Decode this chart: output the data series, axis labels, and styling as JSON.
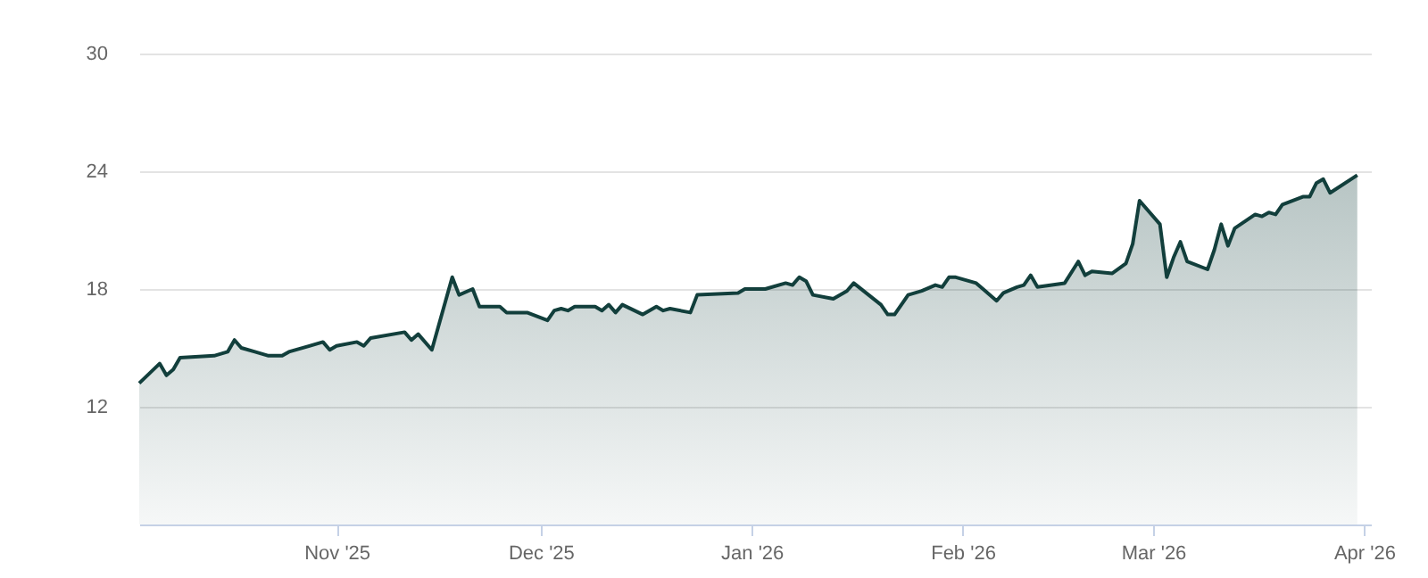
{
  "chart_data": {
    "type": "area",
    "x": [
      "2025-10-03",
      "2025-10-06",
      "2025-10-07",
      "2025-10-08",
      "2025-10-09",
      "2025-10-14",
      "2025-10-16",
      "2025-10-17",
      "2025-10-18",
      "2025-10-20",
      "2025-10-22",
      "2025-10-24",
      "2025-10-25",
      "2025-10-28",
      "2025-10-30",
      "2025-10-31",
      "2025-11-01",
      "2025-11-04",
      "2025-11-05",
      "2025-11-06",
      "2025-11-11",
      "2025-11-12",
      "2025-11-13",
      "2025-11-15",
      "2025-11-18",
      "2025-11-19",
      "2025-11-21",
      "2025-11-22",
      "2025-11-25",
      "2025-11-26",
      "2025-11-29",
      "2025-12-02",
      "2025-12-03",
      "2025-12-04",
      "2025-12-05",
      "2025-12-06",
      "2025-12-09",
      "2025-12-10",
      "2025-12-11",
      "2025-12-12",
      "2025-12-13",
      "2025-12-16",
      "2025-12-18",
      "2025-12-19",
      "2025-12-20",
      "2025-12-23",
      "2025-12-24",
      "2025-12-30",
      "2025-12-31",
      "2026-01-03",
      "2026-01-06",
      "2026-01-07",
      "2026-01-08",
      "2026-01-09",
      "2026-01-10",
      "2026-01-13",
      "2026-01-15",
      "2026-01-16",
      "2026-01-20",
      "2026-01-21",
      "2026-01-22",
      "2026-01-24",
      "2026-01-26",
      "2026-01-28",
      "2026-01-29",
      "2026-01-30",
      "2026-01-31",
      "2026-02-03",
      "2026-02-04",
      "2026-02-06",
      "2026-02-07",
      "2026-02-09",
      "2026-02-10",
      "2026-02-11",
      "2026-02-12",
      "2026-02-16",
      "2026-02-18",
      "2026-02-19",
      "2026-02-20",
      "2026-02-23",
      "2026-02-25",
      "2026-02-26",
      "2026-02-27",
      "2026-03-02",
      "2026-03-03",
      "2026-03-04",
      "2026-03-05",
      "2026-03-06",
      "2026-03-09",
      "2026-03-10",
      "2026-03-11",
      "2026-03-12",
      "2026-03-13",
      "2026-03-16",
      "2026-03-17",
      "2026-03-18",
      "2026-03-19",
      "2026-03-20",
      "2026-03-23",
      "2026-03-24",
      "2026-03-25",
      "2026-03-26",
      "2026-03-27",
      "2026-03-31"
    ],
    "series": [
      {
        "color": "#123f3c",
        "values": [
          13.2,
          14.2,
          13.6,
          13.9,
          14.5,
          14.6,
          14.8,
          15.4,
          15.0,
          14.8,
          14.6,
          14.6,
          14.8,
          15.1,
          15.3,
          14.9,
          15.1,
          15.3,
          15.1,
          15.5,
          15.8,
          15.4,
          15.7,
          14.9,
          18.6,
          17.7,
          18.0,
          17.1,
          17.1,
          16.8,
          16.8,
          16.4,
          16.9,
          17.0,
          16.9,
          17.1,
          17.1,
          16.9,
          17.2,
          16.8,
          17.2,
          16.7,
          17.1,
          16.9,
          17.0,
          16.8,
          17.7,
          17.8,
          18.0,
          18.0,
          18.3,
          18.2,
          18.6,
          18.4,
          17.7,
          17.5,
          17.9,
          18.3,
          17.2,
          16.7,
          16.7,
          17.7,
          17.9,
          18.2,
          18.1,
          18.6,
          18.6,
          18.3,
          18.0,
          17.4,
          17.8,
          18.1,
          18.2,
          18.7,
          18.1,
          18.3,
          19.4,
          18.7,
          18.9,
          18.8,
          19.3,
          20.3,
          22.5,
          21.3,
          18.6,
          19.6,
          20.4,
          19.4,
          19.0,
          20.0,
          21.3,
          20.2,
          21.1,
          21.8,
          21.7,
          21.9,
          21.8,
          22.3,
          22.7,
          22.7,
          23.4,
          23.6,
          22.9,
          23.8
        ]
      }
    ],
    "xlim": [
      "2025-10-03",
      "2026-04-02"
    ],
    "xticks": [
      {
        "value": "2025-11-01",
        "label": "Nov '25"
      },
      {
        "value": "2025-12-01",
        "label": "Dec '25"
      },
      {
        "value": "2026-01-01",
        "label": "Jan '26"
      },
      {
        "value": "2026-02-01",
        "label": "Feb '26"
      },
      {
        "value": "2026-03-01",
        "label": "Mar '26"
      },
      {
        "value": "2026-04-01",
        "label": "Apr '26"
      }
    ],
    "ylim": [
      6,
      30
    ],
    "yticks": [
      12,
      18,
      24,
      30
    ],
    "grid": "y"
  }
}
